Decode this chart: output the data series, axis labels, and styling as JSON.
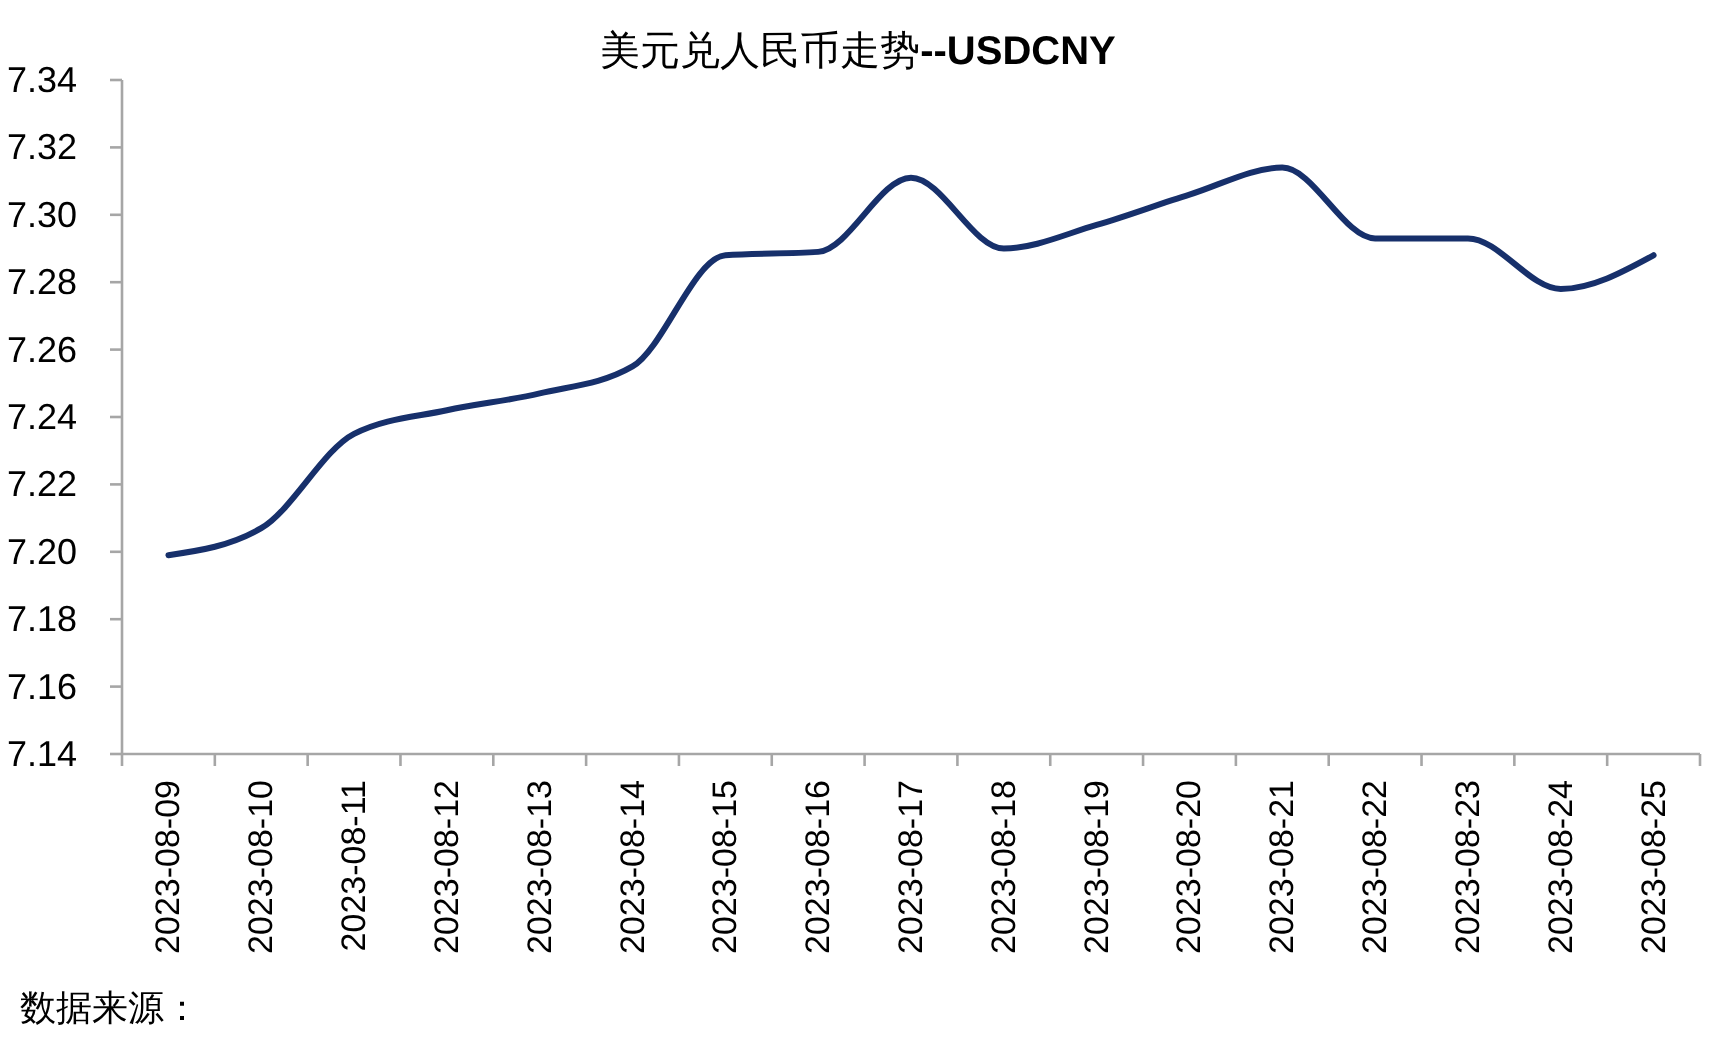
{
  "chart_data": {
    "type": "line",
    "title": "美元兑人民币走势**--USDCNY**",
    "categories": [
      "2023-08-09",
      "2023-08-10",
      "2023-08-11",
      "2023-08-12",
      "2023-08-13",
      "2023-08-14",
      "2023-08-15",
      "2023-08-16",
      "2023-08-17",
      "2023-08-18",
      "2023-08-19",
      "2023-08-20",
      "2023-08-21",
      "2023-08-22",
      "2023-08-23",
      "2023-08-24",
      "2023-08-25"
    ],
    "series": [
      {
        "color": "#17306b",
        "values": [
          7.199,
          7.207,
          7.235,
          7.242,
          7.247,
          7.255,
          7.288,
          7.289,
          7.311,
          7.29,
          7.297,
          7.306,
          7.314,
          7.293,
          7.293,
          7.278,
          7.288
        ]
      }
    ],
    "ylim": [
      7.14,
      7.34
    ],
    "yticks": [
      7.14,
      7.16,
      7.18,
      {
        "value": 7.2,
        "label": "7.20"
      },
      7.22,
      7.24,
      7.26,
      7.28,
      {
        "value": 7.3,
        "label": "7.30"
      },
      7.32,
      7.34
    ],
    "line_style": "solid",
    "annotations": [
      "数据来源："
    ]
  }
}
